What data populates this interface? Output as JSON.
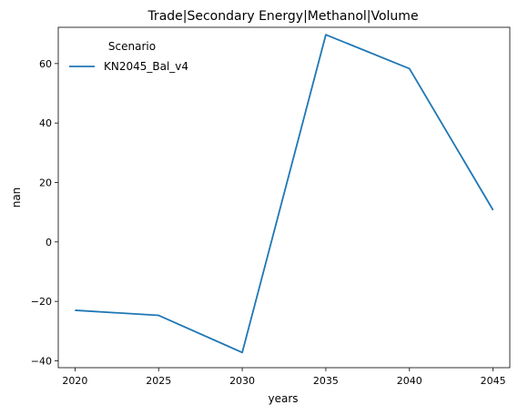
{
  "chart_data": {
    "type": "line",
    "title": "Trade|Secondary Energy|Methanol|Volume",
    "xlabel": "years",
    "ylabel": "nan",
    "x": [
      2020,
      2025,
      2030,
      2035,
      2040,
      2045
    ],
    "x_ticks": [
      2020,
      2025,
      2030,
      2035,
      2040,
      2045
    ],
    "y_ticks": [
      -40,
      -20,
      0,
      20,
      40,
      60
    ],
    "y_tick_labels": [
      "−40",
      "−20",
      "0",
      "20",
      "40",
      "60"
    ],
    "xlim": [
      2019,
      2046
    ],
    "ylim": [
      -42.3,
      72.2
    ],
    "grid": false,
    "legend": {
      "title": "Scenario",
      "placement": "top-left"
    },
    "series": [
      {
        "name": "KN2045_Bal_v4",
        "color": "#1f77b4",
        "values": [
          -23.0,
          -24.7,
          -37.2,
          69.7,
          58.3,
          10.7
        ]
      }
    ]
  }
}
